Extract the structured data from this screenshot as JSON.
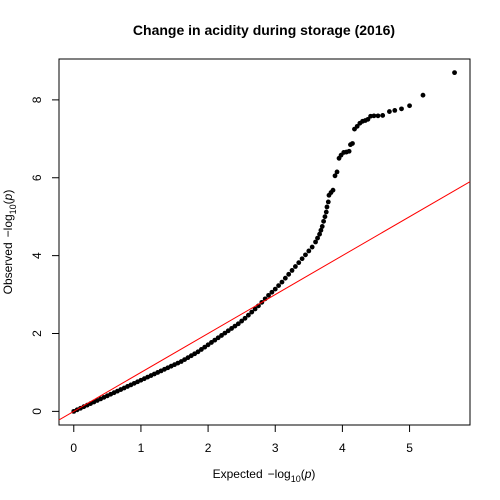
{
  "chart_data": {
    "type": "scatter",
    "title": "Change in acidity during storage (2016)",
    "xlabel": {
      "prefix": "Expected",
      "minus": "−log",
      "sub": "10",
      "arg_open": "(",
      "arg": "p",
      "arg_close": ")"
    },
    "ylabel": {
      "prefix": "Observed",
      "minus": "−log",
      "sub": "10",
      "arg_open": "(",
      "arg": "p",
      "arg_close": ")"
    },
    "xlim": [
      -0.22,
      5.9
    ],
    "ylim": [
      -0.35,
      9.05
    ],
    "x_ticks": [
      "0",
      "1",
      "2",
      "3",
      "4",
      "5"
    ],
    "y_ticks": [
      "0",
      "2",
      "4",
      "6",
      "8"
    ],
    "grid": false,
    "reference_line": {
      "intercept": 0,
      "slope": 1,
      "color": "#ff0000"
    },
    "point_color": "#000000",
    "points": [
      {
        "x": 0.0,
        "y": 0.0
      },
      {
        "x": 0.05,
        "y": 0.04
      },
      {
        "x": 0.1,
        "y": 0.08
      },
      {
        "x": 0.15,
        "y": 0.12
      },
      {
        "x": 0.2,
        "y": 0.16
      },
      {
        "x": 0.25,
        "y": 0.2
      },
      {
        "x": 0.3,
        "y": 0.24
      },
      {
        "x": 0.35,
        "y": 0.28
      },
      {
        "x": 0.4,
        "y": 0.32
      },
      {
        "x": 0.45,
        "y": 0.36
      },
      {
        "x": 0.5,
        "y": 0.4
      },
      {
        "x": 0.55,
        "y": 0.44
      },
      {
        "x": 0.6,
        "y": 0.48
      },
      {
        "x": 0.65,
        "y": 0.52
      },
      {
        "x": 0.7,
        "y": 0.56
      },
      {
        "x": 0.75,
        "y": 0.6
      },
      {
        "x": 0.8,
        "y": 0.64
      },
      {
        "x": 0.85,
        "y": 0.68
      },
      {
        "x": 0.9,
        "y": 0.72
      },
      {
        "x": 0.95,
        "y": 0.76
      },
      {
        "x": 1.0,
        "y": 0.8
      },
      {
        "x": 1.05,
        "y": 0.84
      },
      {
        "x": 1.1,
        "y": 0.88
      },
      {
        "x": 1.15,
        "y": 0.92
      },
      {
        "x": 1.2,
        "y": 0.96
      },
      {
        "x": 1.25,
        "y": 1.0
      },
      {
        "x": 1.3,
        "y": 1.04
      },
      {
        "x": 1.35,
        "y": 1.08
      },
      {
        "x": 1.4,
        "y": 1.12
      },
      {
        "x": 1.45,
        "y": 1.16
      },
      {
        "x": 1.5,
        "y": 1.2
      },
      {
        "x": 1.55,
        "y": 1.24
      },
      {
        "x": 1.6,
        "y": 1.28
      },
      {
        "x": 1.65,
        "y": 1.33
      },
      {
        "x": 1.7,
        "y": 1.38
      },
      {
        "x": 1.75,
        "y": 1.43
      },
      {
        "x": 1.8,
        "y": 1.48
      },
      {
        "x": 1.85,
        "y": 1.53
      },
      {
        "x": 1.9,
        "y": 1.59
      },
      {
        "x": 1.95,
        "y": 1.65
      },
      {
        "x": 2.0,
        "y": 1.71
      },
      {
        "x": 2.05,
        "y": 1.77
      },
      {
        "x": 2.1,
        "y": 1.83
      },
      {
        "x": 2.15,
        "y": 1.89
      },
      {
        "x": 2.2,
        "y": 1.95
      },
      {
        "x": 2.25,
        "y": 2.01
      },
      {
        "x": 2.3,
        "y": 2.07
      },
      {
        "x": 2.35,
        "y": 2.13
      },
      {
        "x": 2.4,
        "y": 2.19
      },
      {
        "x": 2.45,
        "y": 2.25
      },
      {
        "x": 2.5,
        "y": 2.32
      },
      {
        "x": 2.55,
        "y": 2.39
      },
      {
        "x": 2.6,
        "y": 2.47
      },
      {
        "x": 2.65,
        "y": 2.55
      },
      {
        "x": 2.7,
        "y": 2.63
      },
      {
        "x": 2.75,
        "y": 2.71
      },
      {
        "x": 2.8,
        "y": 2.8
      },
      {
        "x": 2.85,
        "y": 2.89
      },
      {
        "x": 2.9,
        "y": 2.98
      },
      {
        "x": 2.95,
        "y": 3.06
      },
      {
        "x": 3.0,
        "y": 3.14
      },
      {
        "x": 3.05,
        "y": 3.23
      },
      {
        "x": 3.1,
        "y": 3.32
      },
      {
        "x": 3.15,
        "y": 3.42
      },
      {
        "x": 3.2,
        "y": 3.52
      },
      {
        "x": 3.25,
        "y": 3.62
      },
      {
        "x": 3.3,
        "y": 3.72
      },
      {
        "x": 3.35,
        "y": 3.82
      },
      {
        "x": 3.4,
        "y": 3.92
      },
      {
        "x": 3.45,
        "y": 4.02
      },
      {
        "x": 3.5,
        "y": 4.12
      },
      {
        "x": 3.55,
        "y": 4.22
      },
      {
        "x": 3.6,
        "y": 4.35
      },
      {
        "x": 3.63,
        "y": 4.45
      },
      {
        "x": 3.66,
        "y": 4.55
      },
      {
        "x": 3.68,
        "y": 4.65
      },
      {
        "x": 3.7,
        "y": 4.75
      },
      {
        "x": 3.72,
        "y": 4.88
      },
      {
        "x": 3.74,
        "y": 5.0
      },
      {
        "x": 3.76,
        "y": 5.12
      },
      {
        "x": 3.77,
        "y": 5.25
      },
      {
        "x": 3.79,
        "y": 5.38
      },
      {
        "x": 3.8,
        "y": 5.55
      },
      {
        "x": 3.83,
        "y": 5.62
      },
      {
        "x": 3.86,
        "y": 5.68
      },
      {
        "x": 3.89,
        "y": 6.05
      },
      {
        "x": 3.92,
        "y": 6.15
      },
      {
        "x": 3.95,
        "y": 6.5
      },
      {
        "x": 3.98,
        "y": 6.58
      },
      {
        "x": 4.02,
        "y": 6.65
      },
      {
        "x": 4.06,
        "y": 6.66
      },
      {
        "x": 4.1,
        "y": 6.68
      },
      {
        "x": 4.12,
        "y": 6.85
      },
      {
        "x": 4.15,
        "y": 6.88
      },
      {
        "x": 4.18,
        "y": 7.25
      },
      {
        "x": 4.22,
        "y": 7.32
      },
      {
        "x": 4.26,
        "y": 7.4
      },
      {
        "x": 4.3,
        "y": 7.45
      },
      {
        "x": 4.34,
        "y": 7.47
      },
      {
        "x": 4.38,
        "y": 7.5
      },
      {
        "x": 4.42,
        "y": 7.58
      },
      {
        "x": 4.47,
        "y": 7.59
      },
      {
        "x": 4.53,
        "y": 7.59
      },
      {
        "x": 4.6,
        "y": 7.6
      },
      {
        "x": 4.7,
        "y": 7.7
      },
      {
        "x": 4.78,
        "y": 7.73
      },
      {
        "x": 4.88,
        "y": 7.77
      },
      {
        "x": 5.0,
        "y": 7.85
      },
      {
        "x": 5.2,
        "y": 8.12
      },
      {
        "x": 5.67,
        "y": 8.7
      }
    ]
  }
}
